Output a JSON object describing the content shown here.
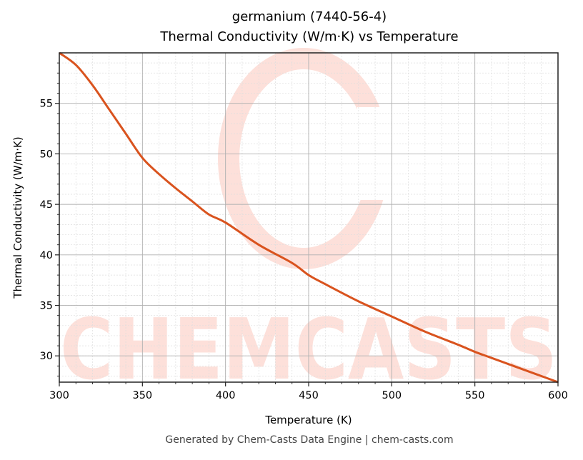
{
  "title": {
    "line1": "germanium (7440-56-4)",
    "line2": "Thermal Conductivity (W/m·K) vs Temperature"
  },
  "footer": "Generated by Chem-Casts Data Engine | chem-casts.com",
  "watermark": {
    "text": "CHEMCASTS",
    "color": "#fde0da"
  },
  "colors": {
    "line": "#d9531e",
    "major_grid": "#b0b0b0",
    "minor_grid": "#dddddd",
    "axis": "#222222"
  },
  "chart_data": {
    "type": "line",
    "title": "germanium (7440-56-4) Thermal Conductivity (W/m·K) vs Temperature",
    "xlabel": "Temperature (K)",
    "ylabel": "Thermal Conductivity (W/m·K)",
    "xlim": [
      300,
      600
    ],
    "ylim": [
      27.4,
      60.0
    ],
    "xticks": [
      300,
      350,
      400,
      450,
      500,
      550,
      600
    ],
    "yticks": [
      30,
      35,
      40,
      45,
      50,
      55
    ],
    "grid": true,
    "legend": null,
    "series": [
      {
        "name": "Thermal Conductivity",
        "x": [
          300,
          310,
          320,
          330,
          340,
          350,
          360,
          370,
          380,
          390,
          400,
          420,
          440,
          450,
          460,
          480,
          500,
          520,
          540,
          550,
          560,
          580,
          600
        ],
        "values": [
          60.0,
          58.8,
          56.8,
          54.4,
          52.0,
          49.6,
          48.0,
          46.6,
          45.3,
          44.0,
          43.2,
          41.0,
          39.2,
          38.0,
          37.1,
          35.4,
          33.9,
          32.4,
          31.1,
          30.4,
          29.8,
          28.6,
          27.4
        ]
      }
    ]
  }
}
